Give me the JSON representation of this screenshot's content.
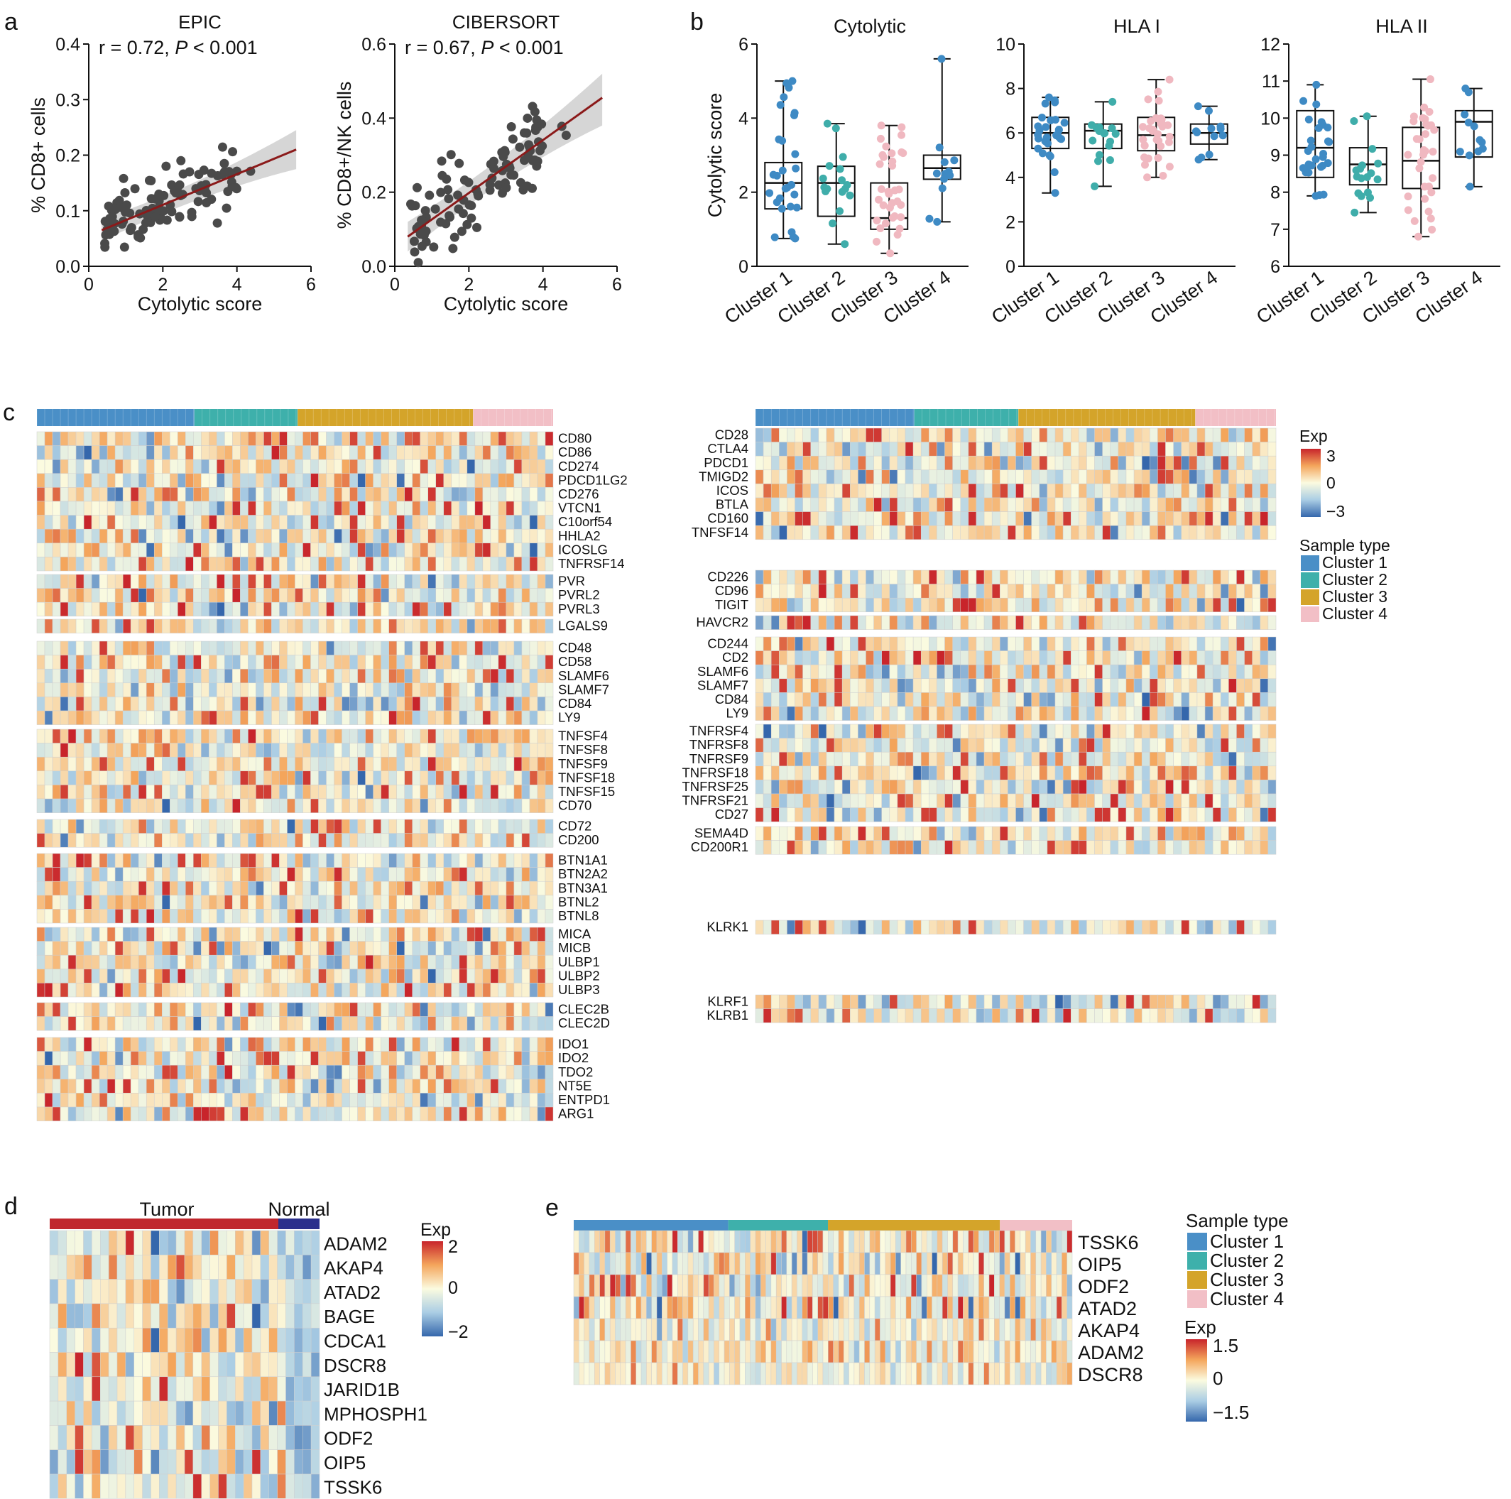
{
  "panels": {
    "a": {
      "letter": "a",
      "charts": [
        {
          "title": "EPIC",
          "r_text": "r = 0.72,",
          "p_text": "P",
          "p_rest": " < 0.001",
          "xlabel": "Cytolytic score",
          "ylabel": "% CD8+ cells",
          "xlim": [
            0,
            6
          ],
          "ylim": [
            0,
            0.4
          ],
          "xticks": [
            "0",
            "2",
            "4",
            "6"
          ],
          "yticks": [
            "0.0",
            "0.1",
            "0.2",
            "0.3",
            "0.4"
          ],
          "fit": {
            "x0": 0.35,
            "y0": 0.065,
            "x1": 5.6,
            "y1": 0.21
          },
          "band": {
            "lo0": 0.045,
            "hi0": 0.085,
            "lo1": 0.175,
            "hi1": 0.245
          }
        },
        {
          "title": "CIBERSORT",
          "r_text": "r = 0.67,",
          "p_text": "P",
          "p_rest": " < 0.001",
          "xlabel": "Cytolytic score",
          "ylabel": "% CD8+/NK cells",
          "xlim": [
            0,
            6
          ],
          "ylim": [
            0,
            0.6
          ],
          "xticks": [
            "0",
            "2",
            "4",
            "6"
          ],
          "yticks": [
            "0.0",
            "0.2",
            "0.4",
            "0.6"
          ],
          "fit": {
            "x0": 0.35,
            "y0": 0.08,
            "x1": 5.6,
            "y1": 0.455
          },
          "band": {
            "lo0": 0.04,
            "hi0": 0.12,
            "lo1": 0.38,
            "hi1": 0.52
          }
        }
      ]
    },
    "b": {
      "letter": "b",
      "categories": [
        "Cluster 1",
        "Cluster 2",
        "Cluster 3",
        "Cluster 4"
      ],
      "colors": [
        "#3e8ac4",
        "#3fadaa",
        "#f0b8c0",
        "#3e8ac4"
      ],
      "charts": [
        {
          "title": "Cytolytic",
          "ylabel": "Cytolytic score",
          "ylim": [
            0,
            6
          ],
          "yticks": [
            "0",
            "2",
            "4",
            "6"
          ],
          "boxes": [
            {
              "min": 0.75,
              "q1": 1.55,
              "median": 2.25,
              "q3": 2.8,
              "max": 5.0
            },
            {
              "min": 0.6,
              "q1": 1.35,
              "median": 2.25,
              "q3": 2.7,
              "max": 3.85
            },
            {
              "min": 0.35,
              "q1": 1.0,
              "median": 1.3,
              "q3": 2.25,
              "max": 3.8
            },
            {
              "min": 1.2,
              "q1": 2.35,
              "median": 2.65,
              "q3": 3.0,
              "max": 5.6
            }
          ]
        },
        {
          "title": "HLA I",
          "ylabel": "",
          "ylim": [
            0,
            10
          ],
          "yticks": [
            "0",
            "2",
            "4",
            "6",
            "8",
            "10"
          ],
          "boxes": [
            {
              "min": 3.3,
              "q1": 5.3,
              "median": 6.0,
              "q3": 6.7,
              "max": 7.6
            },
            {
              "min": 3.6,
              "q1": 5.3,
              "median": 6.1,
              "q3": 6.4,
              "max": 7.4
            },
            {
              "min": 4.0,
              "q1": 5.2,
              "median": 5.9,
              "q3": 6.7,
              "max": 8.4
            },
            {
              "min": 4.8,
              "q1": 5.5,
              "median": 6.0,
              "q3": 6.4,
              "max": 7.2
            }
          ]
        },
        {
          "title": "HLA II",
          "ylabel": "",
          "ylim": [
            6,
            12
          ],
          "yticks": [
            "6",
            "7",
            "8",
            "9",
            "10",
            "11",
            "12"
          ],
          "boxes": [
            {
              "min": 7.9,
              "q1": 8.4,
              "median": 9.2,
              "q3": 10.2,
              "max": 10.9
            },
            {
              "min": 7.45,
              "q1": 8.2,
              "median": 8.75,
              "q3": 9.2,
              "max": 10.05
            },
            {
              "min": 6.8,
              "q1": 8.1,
              "median": 8.85,
              "q3": 9.75,
              "max": 11.05
            },
            {
              "min": 8.15,
              "q1": 8.95,
              "median": 9.9,
              "q3": 10.2,
              "max": 10.8
            }
          ]
        }
      ]
    },
    "c": {
      "letter": "c",
      "left_groups": [
        [
          "CD80",
          "CD86",
          "CD274",
          "PDCD1LG2",
          "CD276",
          "VTCN1",
          "C10orf54",
          "HHLA2",
          "ICOSLG",
          "TNFRSF14"
        ],
        [
          "PVR",
          "PVRL2",
          "PVRL3"
        ],
        [
          "LGALS9"
        ],
        [
          "CD48",
          "CD58",
          "SLAMF6",
          "SLAMF7",
          "CD84",
          "LY9"
        ],
        [
          "TNFSF4",
          "TNFSF8",
          "TNFSF9",
          "TNFSF18",
          "TNFSF15",
          "CD70"
        ],
        [
          "CD72",
          "CD200"
        ],
        [
          "BTN1A1",
          "BTN2A2",
          "BTN3A1",
          "BTNL2",
          "BTNL8"
        ],
        [
          "MICA",
          "MICB",
          "ULBP1",
          "ULBP2",
          "ULBP3"
        ],
        [
          "CLEC2B",
          "CLEC2D"
        ],
        [
          "IDO1",
          "IDO2",
          "TDO2",
          "NT5E",
          "ENTPD1",
          "ARG1"
        ]
      ],
      "right_groups": [
        [
          "CD28",
          "CTLA4",
          "PDCD1",
          "TMIGD2",
          "ICOS",
          "BTLA",
          "CD160",
          "TNFSF14"
        ],
        [
          "CD226",
          "CD96",
          "TIGIT"
        ],
        [
          "HAVCR2"
        ],
        [
          "CD244",
          "CD2",
          "SLAMF6",
          "SLAMF7",
          "CD84",
          "LY9"
        ],
        [
          "TNFRSF4",
          "TNFRSF8",
          "TNFRSF9",
          "TNFRSF18",
          "TNFRSF25",
          "TNFRSF21",
          "CD27"
        ],
        [
          "SEMA4D",
          "CD200R1"
        ],
        [
          "KLRK1"
        ],
        [
          "KLRF1",
          "KLRB1"
        ]
      ],
      "legend": {
        "exp_title": "Exp",
        "exp_ticks": [
          "3",
          "0",
          "−3"
        ],
        "sample_title": "Sample type",
        "clusters": [
          "Cluster 1",
          "Cluster 2",
          "Cluster 3",
          "Cluster 4"
        ]
      }
    },
    "d": {
      "letter": "d",
      "tumor_label": "Tumor",
      "normal_label": "Normal",
      "genes": [
        "ADAM2",
        "AKAP4",
        "ATAD2",
        "BAGE",
        "CDCA1",
        "DSCR8",
        "JARID1B",
        "MPHOSPH1",
        "ODF2",
        "OIP5",
        "TSSK6"
      ],
      "legend": {
        "exp_title": "Exp",
        "exp_ticks": [
          "2",
          "0",
          "−2"
        ]
      }
    },
    "e": {
      "letter": "e",
      "genes": [
        "TSSK6",
        "OIP5",
        "ODF2",
        "ATAD2",
        "AKAP4",
        "ADAM2",
        "DSCR8"
      ],
      "legend": {
        "sample_title": "Sample type",
        "clusters": [
          "Cluster 1",
          "Cluster 2",
          "Cluster 3",
          "Cluster 4"
        ],
        "exp_title": "Exp",
        "exp_ticks": [
          "1.5",
          "0",
          "−1.5"
        ]
      }
    }
  },
  "colors": {
    "cluster1": "#4a8fc7",
    "cluster2": "#3eb0ab",
    "cluster3": "#d4a42a",
    "cluster4": "#f2bfc6",
    "tumor": "#c0272d",
    "normal": "#2b2f8c",
    "heat_low": "#3567ac",
    "heat_mid": "#fbfbe0",
    "heat_high": "#c8242b",
    "scatter_point": "#4a4a4a",
    "fit_line": "#8b1a1a",
    "band": "#c8c8c8"
  }
}
